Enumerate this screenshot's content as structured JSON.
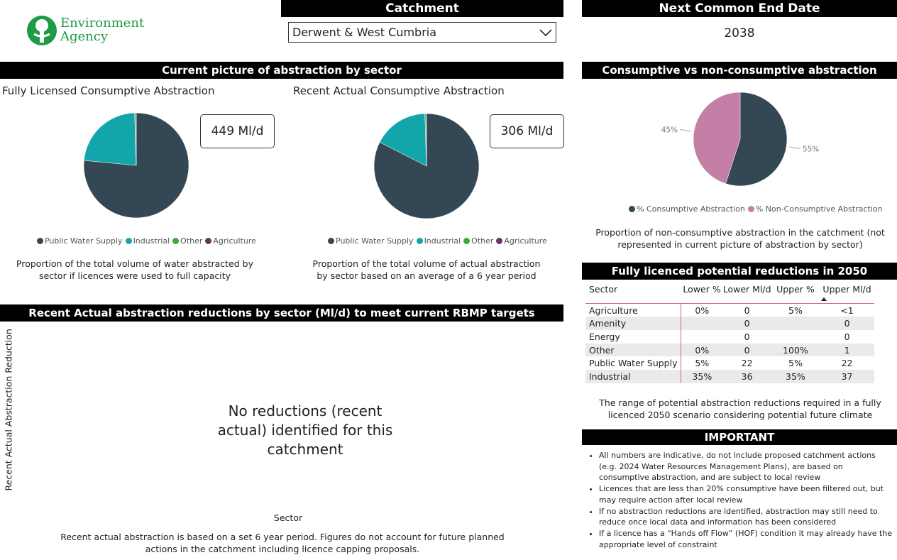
{
  "logo": {
    "line1": "Environment",
    "line2": "Agency"
  },
  "catchment": {
    "title": "Catchment",
    "selected": "Derwent & West Cumbria"
  },
  "end_date": {
    "title": "Next Common End Date",
    "value": 2038
  },
  "sector_section": {
    "title": "Current picture of abstraction by sector"
  },
  "chart_data": [
    {
      "type": "pie",
      "title": "Fully Licensed Consumptive Abstraction",
      "total_label": "449 Ml/d",
      "categories": [
        "Public Water Supply",
        "Industrial",
        "Other",
        "Agriculture"
      ],
      "values": [
        76.5,
        23,
        0.3,
        0.2
      ],
      "colors": [
        "#344754",
        "#12a5a9",
        "#3aa83a",
        "#6a3566"
      ],
      "caption": "Proportion of the total volume of water abstracted by sector if licences were used to full capacity"
    },
    {
      "type": "pie",
      "title": "Recent Actual Consumptive Abstraction",
      "total_label": "306 Ml/d",
      "categories": [
        "Public Water Supply",
        "Industrial",
        "Other",
        "Agriculture"
      ],
      "values": [
        82.5,
        17,
        0.3,
        0.2
      ],
      "colors": [
        "#344754",
        "#12a5a9",
        "#3aa83a",
        "#6a3566"
      ],
      "caption": "Proportion of the total volume of actual abstraction by sector based on an average of a 6 year period"
    },
    {
      "type": "pie",
      "title": "Consumptive vs non-consumptive abstraction",
      "categories": [
        "% Consumptive Abstraction",
        "% Non-Consumptive Abstraction"
      ],
      "values": [
        55,
        45
      ],
      "value_labels": [
        "55%",
        "45%"
      ],
      "colors": [
        "#344754",
        "#c47fa6"
      ],
      "caption": "Proportion of non-consumptive abstraction in the catchment (not represented in current picture of abstraction by sector)"
    }
  ],
  "reductions_table": {
    "title": "Fully licenced potential reductions in 2050",
    "columns": [
      "Sector",
      "Lower %",
      "Lower Ml/d",
      "Upper %",
      "Upper Ml/d"
    ],
    "rows": [
      [
        "Agriculture",
        "0%",
        0,
        "5%",
        "<1"
      ],
      [
        "Amenity",
        null,
        0,
        null,
        0
      ],
      [
        "Energy",
        null,
        0,
        null,
        0
      ],
      [
        "Other",
        "0%",
        0,
        "100%",
        1
      ],
      [
        "Public Water Supply",
        "5%",
        22,
        "5%",
        22
      ],
      [
        "Industrial",
        "35%",
        36,
        "35%",
        37
      ]
    ],
    "caption": "The range of potential abstraction reductions required in a fully licenced 2050 scenario considering potential future climate"
  },
  "reductions": {
    "title": "Recent Actual abstraction reductions by sector (Ml/d) to meet current RBMP targets",
    "y_label": "Recent Actual Abstraction Reduction",
    "x_label": "Sector",
    "message": "No reductions (recent actual) identified for this catchment",
    "note": "Recent actual abstraction is based on a set 6 year period. Figures do not account for future planned actions in the catchment including licence capping proposals."
  },
  "important": {
    "title": "IMPORTANT",
    "items": [
      "All numbers are indicative, do not include proposed catchment actions (e.g. 2024 Water Resources Management Plans), are based on consumptive abstraction, and are subject to local review",
      "Licences that are less than 20% consumptive have been filtered out, but may require action after local review",
      "If no abstraction reductions are identified, abstraction may still need to reduce once local data and information has been considered",
      "If a licence has a “Hands off Flow” (HOF) condition it may already have the appropriate level of constraint"
    ]
  }
}
